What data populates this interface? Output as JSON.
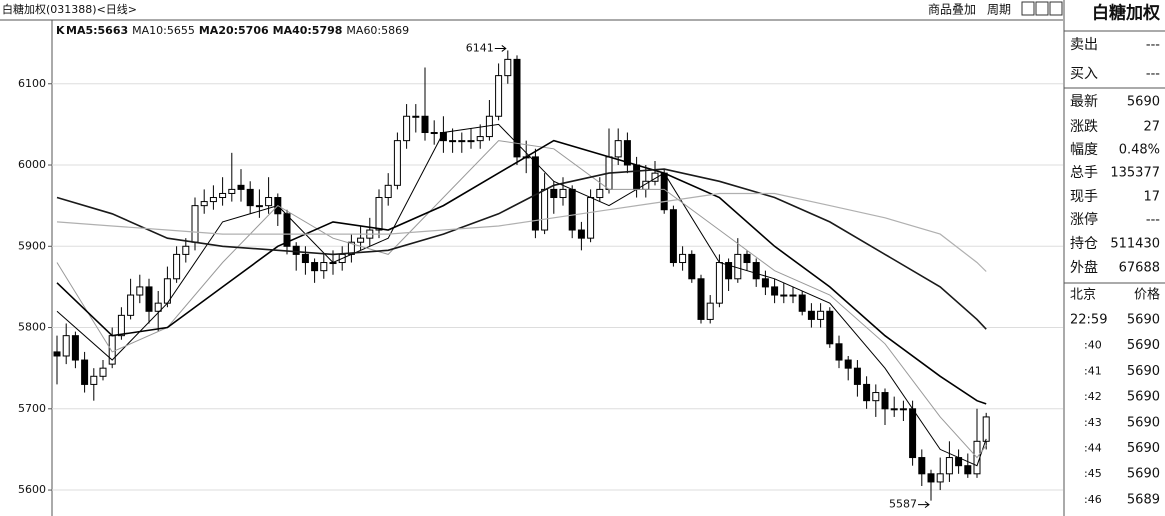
{
  "chart_data": {
    "type": "candlestick",
    "title": "白糖加权(031388)<日线>",
    "name": "K",
    "open": [
      5770,
      5765,
      5790,
      5760,
      5730,
      5740,
      5755,
      5790,
      5815,
      5840,
      5850,
      5820,
      5830,
      5860,
      5890,
      5905,
      5950,
      5955,
      5960,
      5965,
      5975,
      5970,
      5950,
      5950,
      5960,
      5940,
      5900,
      5890,
      5880,
      5870,
      5880,
      5880,
      5890,
      5905,
      5910,
      5920,
      5960,
      5975,
      6030,
      6060,
      6060,
      6040,
      6040,
      6030,
      6030,
      6030,
      6030,
      6035,
      6060,
      6110,
      6130,
      6010,
      6010,
      5920,
      5970,
      5960,
      5970,
      5920,
      5910,
      5960,
      5970,
      6010,
      6030,
      6000,
      5970,
      5980,
      5990,
      5945,
      5880,
      5890,
      5860,
      5810,
      5830,
      5880,
      5860,
      5890,
      5880,
      5860,
      5850,
      5840,
      5840,
      5840,
      5820,
      5810,
      5820,
      5780,
      5760,
      5750,
      5730,
      5710,
      5720,
      5700,
      5700,
      5700,
      5640,
      5620,
      5610,
      5620,
      5640,
      5630,
      5620,
      5660
    ],
    "high": [
      5790,
      5805,
      5795,
      5770,
      5750,
      5760,
      5800,
      5825,
      5860,
      5865,
      5860,
      5845,
      5875,
      5900,
      5910,
      5960,
      5970,
      5975,
      5985,
      6015,
      5995,
      5980,
      5970,
      5985,
      5965,
      5945,
      5905,
      5900,
      5885,
      5890,
      5895,
      5900,
      5915,
      5925,
      5935,
      5970,
      5990,
      6040,
      6075,
      6075,
      6120,
      6055,
      6060,
      6045,
      6040,
      6045,
      6050,
      6080,
      6125,
      6141,
      6135,
      6030,
      6020,
      5990,
      5980,
      5985,
      5975,
      5930,
      5970,
      5985,
      6045,
      6045,
      6040,
      6010,
      6000,
      6005,
      5995,
      5950,
      5900,
      5895,
      5865,
      5840,
      5890,
      5885,
      5910,
      5895,
      5885,
      5870,
      5860,
      5855,
      5850,
      5845,
      5830,
      5830,
      5825,
      5790,
      5765,
      5760,
      5740,
      5730,
      5725,
      5715,
      5710,
      5710,
      5650,
      5625,
      5640,
      5660,
      5650,
      5645,
      5700,
      5695
    ],
    "low": [
      5730,
      5755,
      5750,
      5720,
      5710,
      5735,
      5750,
      5785,
      5810,
      5830,
      5805,
      5795,
      5825,
      5855,
      5880,
      5895,
      5940,
      5945,
      5950,
      5955,
      5955,
      5940,
      5935,
      5940,
      5925,
      5890,
      5870,
      5865,
      5855,
      5860,
      5865,
      5870,
      5880,
      5895,
      5900,
      5910,
      5950,
      5970,
      6020,
      6040,
      6030,
      6025,
      6015,
      6015,
      6015,
      6020,
      6020,
      6030,
      6055,
      6100,
      6000,
      5990,
      5910,
      5915,
      5940,
      5950,
      5910,
      5895,
      5905,
      5955,
      5965,
      6000,
      5990,
      5960,
      5960,
      5975,
      5940,
      5875,
      5870,
      5855,
      5805,
      5805,
      5825,
      5845,
      5855,
      5870,
      5850,
      5840,
      5830,
      5830,
      5830,
      5815,
      5800,
      5800,
      5775,
      5750,
      5735,
      5715,
      5700,
      5690,
      5680,
      5690,
      5685,
      5630,
      5605,
      5587,
      5600,
      5610,
      5620,
      5615,
      5615,
      5650
    ],
    "close": [
      5765,
      5790,
      5760,
      5730,
      5740,
      5750,
      5790,
      5815,
      5840,
      5850,
      5820,
      5830,
      5860,
      5890,
      5900,
      5950,
      5955,
      5960,
      5965,
      5970,
      5970,
      5950,
      5950,
      5960,
      5940,
      5900,
      5890,
      5880,
      5870,
      5880,
      5880,
      5890,
      5905,
      5910,
      5920,
      5960,
      5975,
      6030,
      6060,
      6060,
      6040,
      6040,
      6030,
      6030,
      6030,
      6030,
      6035,
      6060,
      6110,
      6130,
      6010,
      6010,
      5920,
      5970,
      5960,
      5970,
      5920,
      5910,
      5960,
      5970,
      6010,
      6030,
      6000,
      5970,
      5980,
      5990,
      5945,
      5880,
      5890,
      5860,
      5810,
      5830,
      5880,
      5860,
      5890,
      5880,
      5860,
      5850,
      5840,
      5840,
      5840,
      5820,
      5810,
      5820,
      5780,
      5760,
      5750,
      5730,
      5710,
      5720,
      5700,
      5700,
      5700,
      5640,
      5620,
      5610,
      5620,
      5640,
      5630,
      5620,
      5660,
      5690
    ],
    "series": [
      {
        "name": "MA5:5663",
        "color": "#000000",
        "x": [
          0,
          6,
          12,
          18,
          24,
          30,
          36,
          42,
          48,
          54,
          60,
          66,
          72,
          78,
          84,
          90,
          96,
          100,
          101
        ],
        "values": [
          5820,
          5760,
          5830,
          5930,
          5950,
          5880,
          5910,
          6040,
          6050,
          5980,
          5950,
          5990,
          5880,
          5860,
          5830,
          5750,
          5650,
          5630,
          5663
        ]
      },
      {
        "name": "MA10:5655",
        "color": "#9a9a9a",
        "x": [
          0,
          6,
          12,
          18,
          24,
          30,
          36,
          42,
          48,
          54,
          60,
          66,
          72,
          78,
          84,
          90,
          96,
          100,
          101
        ],
        "values": [
          5880,
          5770,
          5800,
          5880,
          5950,
          5910,
          5890,
          5960,
          6030,
          6020,
          5970,
          5970,
          5920,
          5870,
          5840,
          5780,
          5690,
          5640,
          5655
        ]
      },
      {
        "name": "MA20:5706",
        "color": "#000000",
        "x": [
          0,
          6,
          12,
          18,
          24,
          30,
          36,
          42,
          48,
          54,
          60,
          66,
          72,
          78,
          84,
          90,
          96,
          100,
          101
        ],
        "values": [
          5855,
          5790,
          5800,
          5850,
          5900,
          5930,
          5920,
          5950,
          5990,
          6030,
          6010,
          5990,
          5960,
          5900,
          5850,
          5790,
          5740,
          5710,
          5706
        ]
      },
      {
        "name": "MA40:5798",
        "color": "#1a1a1a",
        "x": [
          0,
          6,
          12,
          18,
          24,
          30,
          36,
          42,
          48,
          54,
          60,
          66,
          72,
          78,
          84,
          90,
          96,
          100,
          101
        ],
        "values": [
          5960,
          5940,
          5910,
          5900,
          5895,
          5890,
          5895,
          5915,
          5940,
          5975,
          5990,
          5995,
          5980,
          5960,
          5930,
          5890,
          5850,
          5810,
          5798
        ]
      },
      {
        "name": "MA60:5869",
        "color": "#b0b0b0",
        "x": [
          0,
          6,
          12,
          18,
          24,
          30,
          36,
          42,
          48,
          54,
          60,
          66,
          72,
          78,
          84,
          90,
          96,
          100,
          101
        ],
        "values": [
          5930,
          5925,
          5920,
          5915,
          5915,
          5915,
          5915,
          5920,
          5925,
          5935,
          5945,
          5955,
          5965,
          5965,
          5950,
          5935,
          5915,
          5880,
          5869
        ]
      }
    ],
    "ylim": [
      5573,
      6176
    ],
    "yticks": [
      5600,
      5700,
      5800,
      5900,
      6000,
      6100
    ],
    "grid": true,
    "up_color": "#ffffff",
    "down_color": "#000000"
  },
  "toolbar": {
    "overlay": "商品叠加",
    "period": "周期"
  },
  "side_panel": {
    "title": "白糖加权",
    "quote": [
      [
        "卖出",
        "---"
      ],
      [
        "买入",
        "---"
      ],
      [
        "最新",
        "5690"
      ],
      [
        "涨跌",
        "27"
      ],
      [
        "幅度",
        "0.48%"
      ],
      [
        "总手",
        "135377"
      ],
      [
        "现手",
        "17"
      ],
      [
        "涨停",
        "---"
      ],
      [
        "持仓",
        "511430"
      ],
      [
        "外盘",
        "67688"
      ]
    ],
    "ticks_header": [
      "北京",
      "价格"
    ],
    "ticks": [
      [
        "22:59",
        "5690"
      ],
      [
        ":40",
        "5690"
      ],
      [
        ":41",
        "5690"
      ],
      [
        ":42",
        "5690"
      ],
      [
        ":43",
        "5690"
      ],
      [
        ":44",
        "5690"
      ],
      [
        ":45",
        "5690"
      ],
      [
        ":46",
        "5689"
      ]
    ]
  }
}
